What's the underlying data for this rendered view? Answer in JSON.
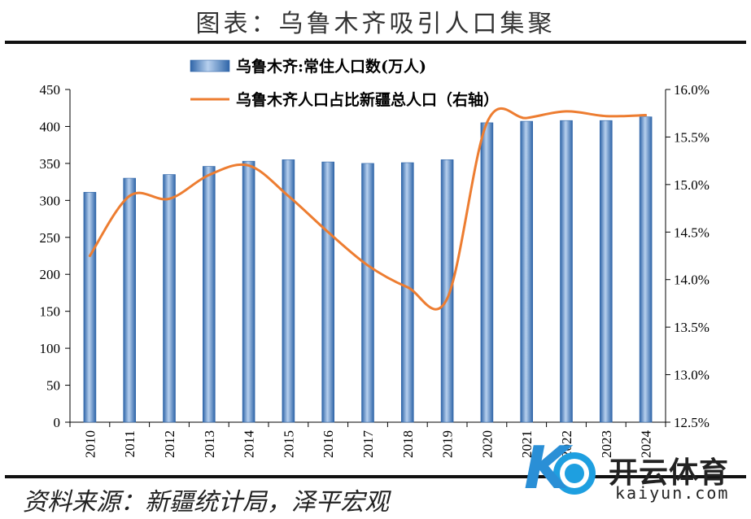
{
  "header": {
    "title": "图表：乌鲁木齐吸引人口集聚"
  },
  "footer": {
    "source": "资料来源：新疆统计局，泽平宏观"
  },
  "watermark": {
    "brand": "开云体育",
    "url": "kaiyun.com",
    "logo_letter": "K"
  },
  "colors": {
    "bar": "#4a7fbf",
    "bar_light": "#b7d0ee",
    "line": "#ed7d31"
  },
  "chart_data": {
    "type": "bar",
    "categories": [
      "2010",
      "2011",
      "2012",
      "2013",
      "2014",
      "2015",
      "2016",
      "2017",
      "2018",
      "2019",
      "2020",
      "2021",
      "2022",
      "2023",
      "2024"
    ],
    "series": [
      {
        "name": "乌鲁木齐:常住人口数(万人)",
        "type": "bar",
        "axis": "left",
        "values": [
          311,
          330,
          335,
          346,
          353,
          355,
          352,
          350,
          351,
          355,
          405,
          407,
          408,
          408,
          413
        ]
      },
      {
        "name": "乌鲁木齐人口占比新疆总人口（右轴）",
        "type": "line",
        "axis": "right",
        "values": [
          14.25,
          14.88,
          14.85,
          15.1,
          15.2,
          14.88,
          14.5,
          14.15,
          13.92,
          13.8,
          15.65,
          15.7,
          15.77,
          15.72,
          15.73
        ]
      }
    ],
    "y_left": {
      "min": 0,
      "max": 450,
      "step": 50,
      "ticks": [
        "0",
        "50",
        "100",
        "150",
        "200",
        "250",
        "300",
        "350",
        "400",
        "450"
      ]
    },
    "y_right": {
      "min": 12.5,
      "max": 16.0,
      "step": 0.5,
      "ticks": [
        "12.5%",
        "13.0%",
        "13.5%",
        "14.0%",
        "14.5%",
        "15.0%",
        "15.5%",
        "16.0%"
      ]
    },
    "legend_position": "top-left",
    "grid": false
  }
}
